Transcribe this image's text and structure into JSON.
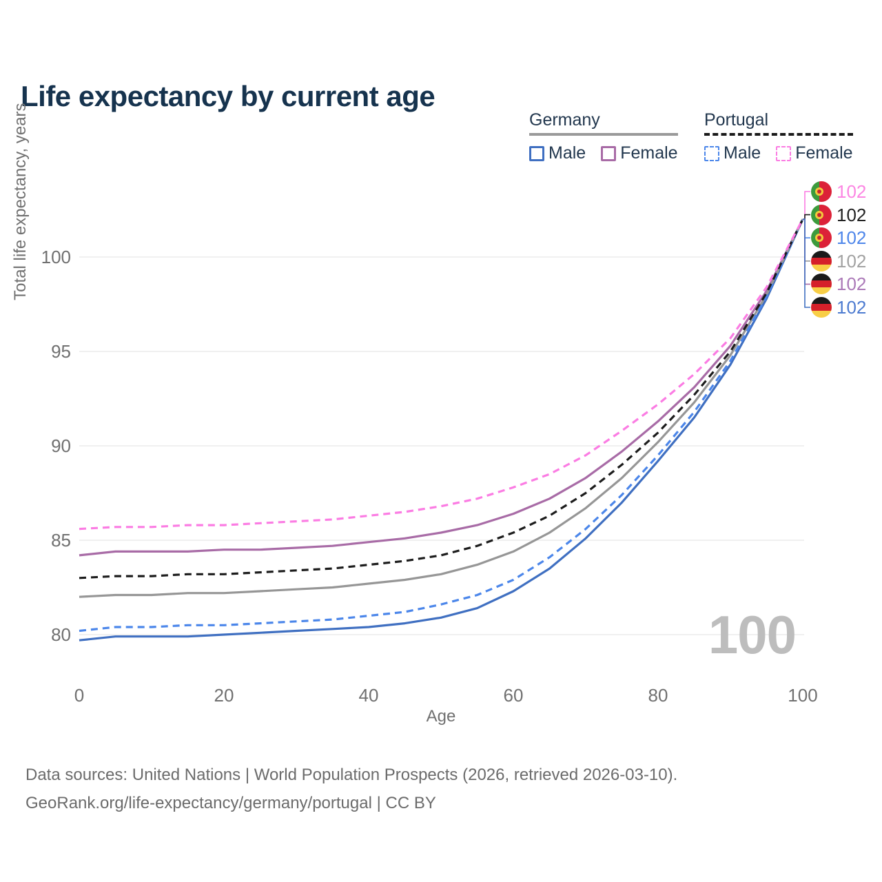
{
  "title": "Life expectancy by current age",
  "legend": {
    "groups": [
      {
        "country": "Germany",
        "line_style": "solid",
        "underline_color": "#9a9a9a",
        "items": [
          {
            "label": "Male",
            "swatch_color": "#3f6fc1",
            "dashed": false
          },
          {
            "label": "Female",
            "swatch_color": "#a86ba6",
            "dashed": false
          }
        ]
      },
      {
        "country": "Portugal",
        "line_style": "dashed",
        "underline_color": "#1a1a1a",
        "items": [
          {
            "label": "Male",
            "swatch_color": "#4b86ea",
            "dashed": true
          },
          {
            "label": "Female",
            "swatch_color": "#fb7ce3",
            "dashed": true
          }
        ]
      }
    ]
  },
  "chart_data": {
    "type": "line",
    "title": "Life expectancy by current age",
    "xlabel": "Age",
    "ylabel": "Total life expectancy, years",
    "xticks": [
      0,
      20,
      40,
      60,
      80,
      100
    ],
    "yticks": [
      80,
      85,
      90,
      95,
      100
    ],
    "xlim": [
      0,
      100
    ],
    "ylim": [
      79.5,
      103
    ],
    "grid": "horizontal-only",
    "legend_position": "top-right",
    "age_counter": "100",
    "x": [
      0,
      5,
      10,
      15,
      20,
      25,
      30,
      35,
      40,
      45,
      50,
      55,
      60,
      65,
      70,
      75,
      80,
      85,
      90,
      95,
      100
    ],
    "series": [
      {
        "name": "Portugal Female",
        "country": "Portugal",
        "sex": "Female",
        "color": "#fb7ce3",
        "label_color": "#fc86e3",
        "dashed": true,
        "end_label": "102",
        "flag_icon": "portugal-flag-icon",
        "values": [
          85.6,
          85.7,
          85.7,
          85.8,
          85.8,
          85.9,
          86.0,
          86.1,
          86.3,
          86.5,
          86.8,
          87.2,
          87.8,
          88.5,
          89.5,
          90.8,
          92.2,
          93.8,
          95.7,
          98.4,
          102
        ]
      },
      {
        "name": "Portugal Both sexes",
        "country": "Portugal",
        "sex": "Both",
        "color": "#1c1c1c",
        "label_color": "#222222",
        "dashed": true,
        "end_label": "102",
        "flag_icon": "portugal-flag-icon",
        "values": [
          83.0,
          83.1,
          83.1,
          83.2,
          83.2,
          83.3,
          83.4,
          83.5,
          83.7,
          83.9,
          84.2,
          84.7,
          85.4,
          86.3,
          87.5,
          89.0,
          90.7,
          92.7,
          95.0,
          98.1,
          102
        ]
      },
      {
        "name": "Portugal Male",
        "country": "Portugal",
        "sex": "Male",
        "color": "#4b86ea",
        "label_color": "#4e86ea",
        "dashed": true,
        "end_label": "102",
        "flag_icon": "portugal-flag-icon",
        "values": [
          80.2,
          80.4,
          80.4,
          80.5,
          80.5,
          80.6,
          80.7,
          80.8,
          81.0,
          81.2,
          81.6,
          82.1,
          82.9,
          84.1,
          85.6,
          87.4,
          89.5,
          91.8,
          94.5,
          97.9,
          102
        ]
      },
      {
        "name": "Germany Both sexes",
        "country": "Germany",
        "sex": "Both",
        "color": "#969696",
        "label_color": "#a2a2a2",
        "dashed": false,
        "end_label": "102",
        "flag_icon": "germany-flag-icon",
        "values": [
          82.0,
          82.1,
          82.1,
          82.2,
          82.2,
          82.3,
          82.4,
          82.5,
          82.7,
          82.9,
          83.2,
          83.7,
          84.4,
          85.4,
          86.7,
          88.3,
          90.2,
          92.3,
          94.8,
          98.0,
          102
        ]
      },
      {
        "name": "Germany Female",
        "country": "Germany",
        "sex": "Female",
        "color": "#a86ba6",
        "label_color": "#ab79b8",
        "dashed": false,
        "end_label": "102",
        "flag_icon": "germany-flag-icon",
        "values": [
          84.2,
          84.4,
          84.4,
          84.4,
          84.5,
          84.5,
          84.6,
          84.7,
          84.9,
          85.1,
          85.4,
          85.8,
          86.4,
          87.2,
          88.3,
          89.7,
          91.3,
          93.1,
          95.3,
          98.2,
          102
        ]
      },
      {
        "name": "Germany Male",
        "country": "Germany",
        "sex": "Male",
        "color": "#3f6fc1",
        "label_color": "#4d7bd0",
        "dashed": false,
        "end_label": "102",
        "flag_icon": "germany-flag-icon",
        "values": [
          79.7,
          79.9,
          79.9,
          79.9,
          80.0,
          80.1,
          80.2,
          80.3,
          80.4,
          80.6,
          80.9,
          81.4,
          82.3,
          83.5,
          85.1,
          87.0,
          89.2,
          91.5,
          94.3,
          97.8,
          102
        ]
      }
    ]
  },
  "footer": {
    "line1": "Data sources: United Nations | World Population Prospects (2026, retrieved 2026-03-10).",
    "line2": "GeoRank.org/life-expectancy/germany/portugal | CC BY"
  }
}
